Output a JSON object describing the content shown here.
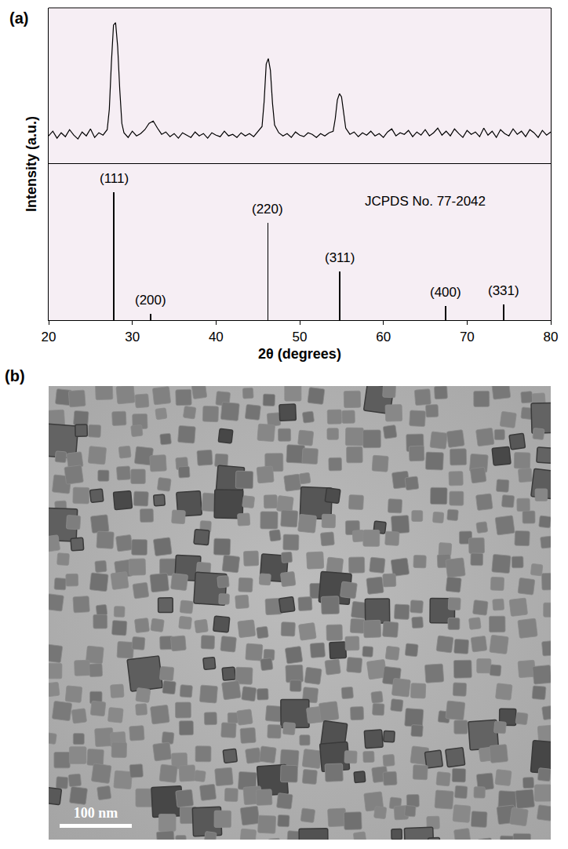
{
  "chart_data": {
    "type": "line",
    "xlabel": "2θ (degrees)",
    "ylabel": "Intensity (a.u.)",
    "xlim": [
      20,
      80
    ],
    "xticks": [
      20,
      30,
      40,
      50,
      60,
      70,
      80
    ],
    "ylim": [
      0,
      200
    ],
    "y2lim": [
      0,
      122
    ],
    "tick_labels": "x",
    "grid": false,
    "annotations": [
      {
        "text": "JCPDS No. 77-2042"
      }
    ],
    "series": [
      {
        "type": "line",
        "color": "#000000",
        "x": [
          20,
          20.5,
          21,
          21.5,
          22,
          22.5,
          23,
          23.5,
          24,
          24.5,
          25,
          25.5,
          26,
          26.5,
          27,
          27.25,
          27.5,
          27.75,
          28,
          28.25,
          28.5,
          28.75,
          29,
          29.5,
          30,
          30.5,
          31,
          31.5,
          32,
          32.5,
          33,
          33.5,
          34,
          34.5,
          35,
          35.5,
          36,
          36.5,
          37,
          37.5,
          38,
          38.5,
          39,
          39.5,
          40,
          40.5,
          41,
          41.5,
          42,
          42.5,
          43,
          43.5,
          44,
          44.5,
          45,
          45.5,
          45.75,
          46,
          46.25,
          46.5,
          46.75,
          47,
          47.5,
          48,
          48.5,
          49,
          49.5,
          50,
          50.5,
          51,
          51.5,
          52,
          52.5,
          53,
          53.5,
          54,
          54.25,
          54.5,
          54.75,
          55,
          55.25,
          55.5,
          56,
          56.5,
          57,
          57.5,
          58,
          58.5,
          59,
          59.5,
          60,
          60.5,
          61,
          61.5,
          62,
          62.5,
          63,
          63.5,
          64,
          64.5,
          65,
          65.5,
          66,
          66.5,
          67,
          67.5,
          68,
          68.5,
          69,
          69.5,
          70,
          70.5,
          71,
          71.5,
          72,
          72.5,
          73,
          73.5,
          74,
          74.5,
          75,
          75.5,
          76,
          76.5,
          77,
          77.5,
          78,
          78.5,
          79,
          79.5,
          80
        ],
        "values": [
          36,
          42,
          33,
          40,
          35,
          44,
          37,
          32,
          41,
          36,
          45,
          34,
          40,
          37,
          44,
          70,
          130,
          178,
          181,
          150,
          95,
          52,
          40,
          34,
          42,
          36,
          39,
          44,
          52,
          55,
          46,
          38,
          41,
          35,
          39,
          33,
          40,
          37,
          34,
          41,
          36,
          39,
          33,
          40,
          37,
          35,
          42,
          36,
          38,
          34,
          40,
          36,
          39,
          35,
          41,
          48,
          80,
          128,
          135,
          120,
          78,
          50,
          40,
          36,
          39,
          34,
          41,
          37,
          35,
          40,
          38,
          34,
          39,
          36,
          40,
          42,
          58,
          82,
          90,
          86,
          66,
          46,
          38,
          41,
          35,
          40,
          37,
          42,
          36,
          39,
          34,
          41,
          45,
          36,
          40,
          38,
          43,
          35,
          41,
          37,
          44,
          36,
          40,
          46,
          37,
          42,
          36,
          45,
          39,
          34,
          43,
          38,
          41,
          35,
          46,
          37,
          42,
          34,
          44,
          39,
          36,
          45,
          38,
          42,
          35,
          44,
          40,
          34,
          43,
          37,
          41
        ]
      },
      {
        "type": "bar",
        "axis": "y2",
        "color": "#000000",
        "x": [
          27.8,
          32.2,
          46.2,
          54.8,
          67.4,
          74.4
        ],
        "values": [
          100,
          5,
          76,
          38,
          11,
          12
        ],
        "labels": [
          "(111)",
          "(200)",
          "(220)",
          "(311)",
          "(400)",
          "(331)"
        ]
      }
    ]
  },
  "figure": {
    "panel_labels": [
      "(a)",
      "(b)"
    ],
    "micrograph": {
      "scale_bar": "100 nm"
    }
  }
}
